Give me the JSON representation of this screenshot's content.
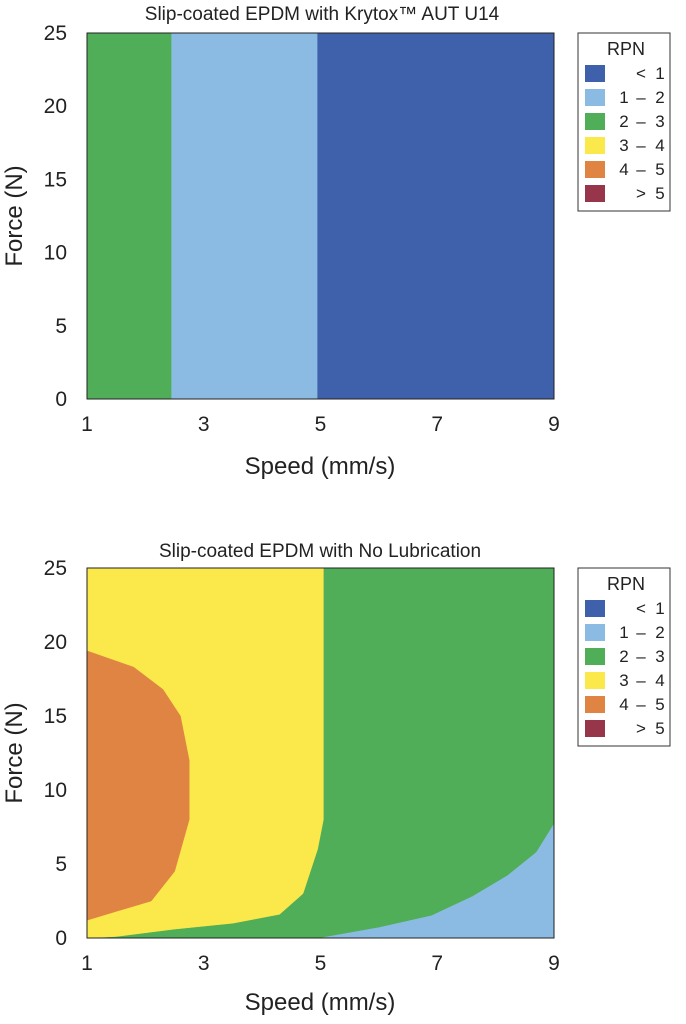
{
  "colors": {
    "lt1": "#3f60ab",
    "r1_2": "#8bbbe3",
    "r2_3": "#4fae57",
    "r3_4": "#fbe84b",
    "r4_5": "#e08443",
    "gt5": "#97354b"
  },
  "legend": {
    "title": "RPN",
    "items": [
      {
        "a": "",
        "dash": "<",
        "b": "1",
        "color_key": "lt1"
      },
      {
        "a": "1",
        "dash": "–",
        "b": "2",
        "color_key": "r1_2"
      },
      {
        "a": "2",
        "dash": "–",
        "b": "3",
        "color_key": "r2_3"
      },
      {
        "a": "3",
        "dash": "–",
        "b": "4",
        "color_key": "r3_4"
      },
      {
        "a": "4",
        "dash": "–",
        "b": "5",
        "color_key": "r4_5"
      },
      {
        "a": "",
        "dash": ">",
        "b": "5",
        "color_key": "gt5"
      }
    ]
  },
  "chart_data": [
    {
      "type": "heatmap",
      "title": "Slip-coated EPDM with Krytox™ AUT U14",
      "xlabel": "Speed (mm/s)",
      "ylabel": "Force (N)",
      "xlim": [
        1,
        9
      ],
      "ylim": [
        0,
        25
      ],
      "xticks": [
        "1",
        "3",
        "5",
        "7",
        "9"
      ],
      "yticks": [
        "0",
        "5",
        "10",
        "15",
        "20",
        "25"
      ],
      "regions": [
        {
          "range": "2 – 3",
          "color_key": "r2_3",
          "polygon": [
            [
              1,
              0
            ],
            [
              2.45,
              0
            ],
            [
              2.45,
              25
            ],
            [
              1,
              25
            ]
          ]
        },
        {
          "range": "1 – 2",
          "color_key": "r1_2",
          "polygon": [
            [
              2.45,
              0
            ],
            [
              4.95,
              0
            ],
            [
              4.95,
              25
            ],
            [
              2.45,
              25
            ]
          ]
        },
        {
          "range": "< 1",
          "color_key": "lt1",
          "polygon": [
            [
              4.95,
              0
            ],
            [
              9,
              0
            ],
            [
              9,
              25
            ],
            [
              4.95,
              25
            ]
          ]
        }
      ]
    },
    {
      "type": "heatmap",
      "title": "Slip-coated EPDM with No Lubrication",
      "xlabel": "Speed (mm/s)",
      "ylabel": "Force (N)",
      "xlim": [
        1,
        9
      ],
      "ylim": [
        0,
        25
      ],
      "xticks": [
        "1",
        "3",
        "5",
        "7",
        "9"
      ],
      "yticks": [
        "0",
        "5",
        "10",
        "15",
        "20",
        "25"
      ],
      "regions": [
        {
          "range": "2 – 3",
          "color_key": "r2_3",
          "polygon": [
            [
              1,
              0
            ],
            [
              9,
              0
            ],
            [
              9,
              25
            ],
            [
              1,
              25
            ]
          ]
        },
        {
          "range": "3 – 4",
          "color_key": "r3_4",
          "polygon": [
            [
              1,
              0
            ],
            [
              1.5,
              0.1
            ],
            [
              2.5,
              0.6
            ],
            [
              3.5,
              1.0
            ],
            [
              4.3,
              1.6
            ],
            [
              4.7,
              3.0
            ],
            [
              4.95,
              6.0
            ],
            [
              5.05,
              8.0
            ],
            [
              5.05,
              25
            ],
            [
              1,
              25
            ]
          ]
        },
        {
          "range": "4 – 5",
          "color_key": "r4_5",
          "polygon": [
            [
              1,
              1.2
            ],
            [
              1.5,
              1.8
            ],
            [
              2.1,
              2.5
            ],
            [
              2.5,
              4.5
            ],
            [
              2.75,
              8.0
            ],
            [
              2.75,
              12.0
            ],
            [
              2.6,
              15.0
            ],
            [
              2.3,
              16.8
            ],
            [
              1.8,
              18.3
            ],
            [
              1,
              19.4
            ]
          ]
        },
        {
          "range": "1 – 2",
          "color_key": "r1_2",
          "polygon": [
            [
              5.0,
              0
            ],
            [
              6.0,
              0.7
            ],
            [
              6.9,
              1.5
            ],
            [
              7.6,
              2.8
            ],
            [
              8.2,
              4.2
            ],
            [
              8.7,
              5.8
            ],
            [
              9,
              7.7
            ],
            [
              9,
              0
            ]
          ]
        }
      ]
    }
  ]
}
